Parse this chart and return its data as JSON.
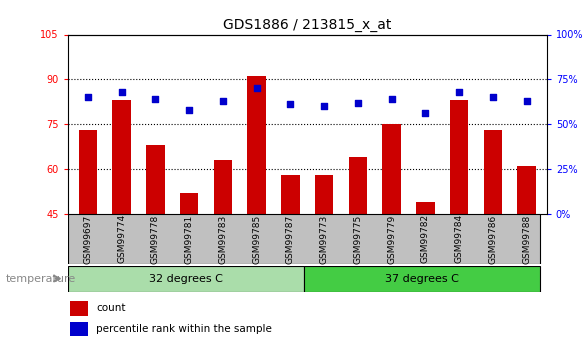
{
  "title": "GDS1886 / 213815_x_at",
  "samples": [
    "GSM99697",
    "GSM99774",
    "GSM99778",
    "GSM99781",
    "GSM99783",
    "GSM99785",
    "GSM99787",
    "GSM99773",
    "GSM99775",
    "GSM99779",
    "GSM99782",
    "GSM99784",
    "GSM99786",
    "GSM99788"
  ],
  "counts": [
    73,
    83,
    68,
    52,
    63,
    91,
    58,
    58,
    64,
    75,
    49,
    83,
    73,
    61
  ],
  "percentiles": [
    65,
    68,
    64,
    58,
    63,
    70,
    61,
    60,
    62,
    64,
    56,
    68,
    65,
    63
  ],
  "group1_label": "32 degrees C",
  "group2_label": "37 degrees C",
  "group1_count": 7,
  "group2_count": 7,
  "ylim_left": [
    45,
    105
  ],
  "ylim_right": [
    0,
    100
  ],
  "yticks_left": [
    45,
    60,
    75,
    90,
    105
  ],
  "yticks_right": [
    0,
    25,
    50,
    75,
    100
  ],
  "yticklabels_right": [
    "0%",
    "25%",
    "50%",
    "75%",
    "100%"
  ],
  "bar_color": "#cc0000",
  "dot_color": "#0000cc",
  "group1_bg": "#aaddaa",
  "group2_bg": "#44cc44",
  "xlabel_area_bg": "#c0c0c0",
  "title_fontsize": 10,
  "tick_fontsize": 7,
  "label_fontsize": 8,
  "legend_fontsize": 7.5,
  "temperature_label": "temperature",
  "legend_count": "count",
  "legend_percentile": "percentile rank within the sample"
}
